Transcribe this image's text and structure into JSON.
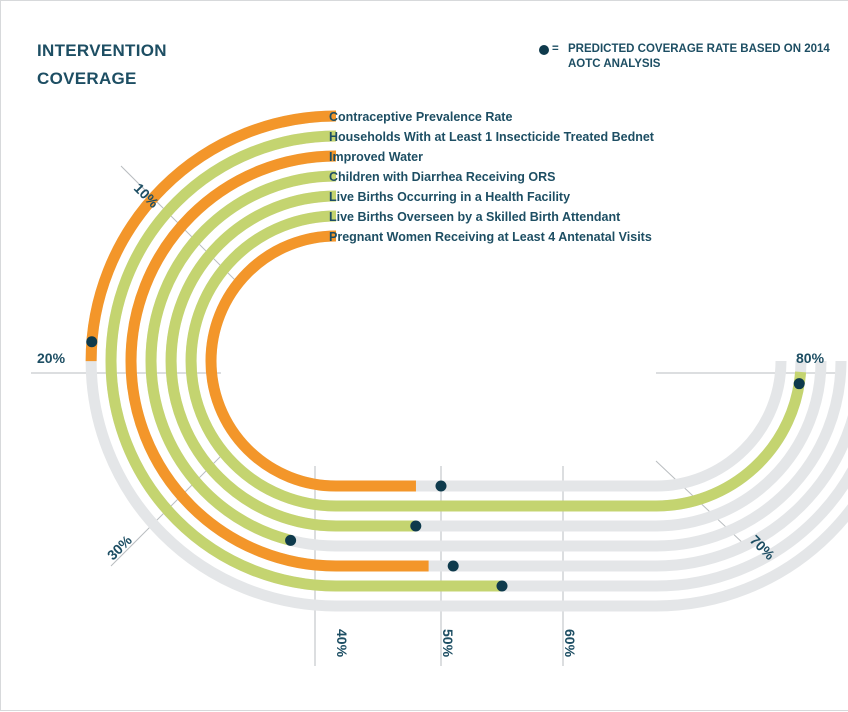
{
  "title": "INTERVENTION COVERAGE",
  "legend": {
    "equals": "=",
    "text": "PREDICTED COVERAGE RATE BASED ON 2014 AOTC ANALYSIS"
  },
  "colors": {
    "orange": "#f3962a",
    "green": "#c4d470",
    "track": "#e4e6e8",
    "dot": "#0e3a4c",
    "text": "#1d4e63"
  },
  "chart_data": {
    "type": "radial-track",
    "title": "INTERVENTION COVERAGE",
    "axis_ticks": [
      "10%",
      "20%",
      "30%",
      "40%",
      "50%",
      "60%",
      "70%",
      "80%"
    ],
    "series": [
      {
        "name": "Contraceptive Prevalence Rate",
        "color": "orange",
        "actual": 20,
        "predicted": 19
      },
      {
        "name": "Households With at Least 1 Insecticide Treated Bednet",
        "color": "green",
        "actual": 55,
        "predicted": 55
      },
      {
        "name": "Improved Water",
        "color": "orange",
        "actual": 49,
        "predicted": 51
      },
      {
        "name": "Children with Diarrhea Receiving ORS",
        "color": "green",
        "actual": 38,
        "predicted": 38
      },
      {
        "name": "Live Births Occurring in a Health Facility",
        "color": "green",
        "actual": 48,
        "predicted": 48
      },
      {
        "name": "Live Births Overseen by a Skilled Birth Attendant",
        "color": "green",
        "actual": 79,
        "predicted": 78
      },
      {
        "name": "Pregnant Women Receiving at Least 4 Antenatal Visits",
        "color": "orange",
        "actual": 48,
        "predicted": 50
      }
    ]
  }
}
